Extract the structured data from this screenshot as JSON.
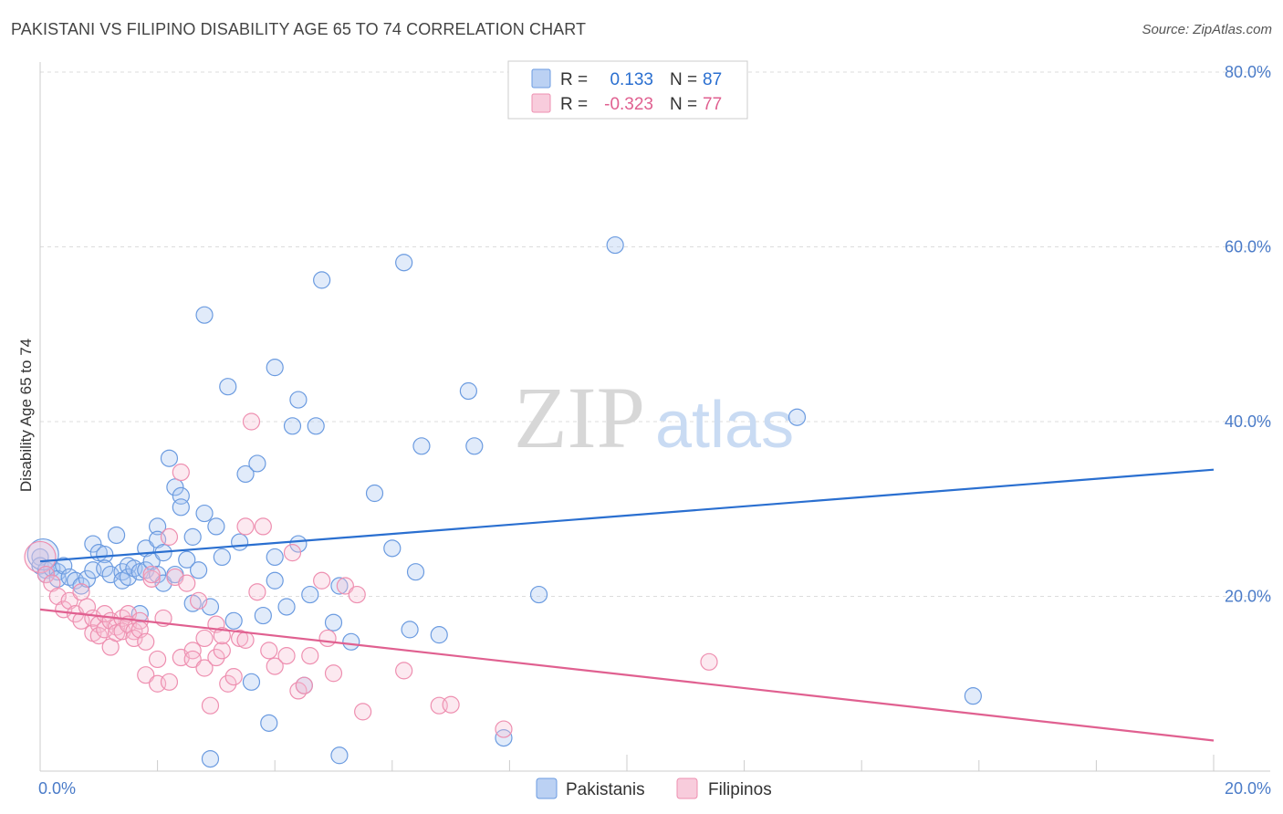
{
  "header": {
    "title": "PAKISTANI VS FILIPINO DISABILITY AGE 65 TO 74 CORRELATION CHART",
    "source": "Source: ZipAtlas.com"
  },
  "chart_data": {
    "type": "scatter",
    "title": "PAKISTANI VS FILIPINO DISABILITY AGE 65 TO 74 CORRELATION CHART",
    "xlabel": "",
    "ylabel": "Disability Age 65 to 74",
    "xlim": [
      0,
      20
    ],
    "ylim": [
      0,
      80
    ],
    "x_tick_labels": [
      "0.0%",
      "20.0%"
    ],
    "y_ticks": [
      20,
      40,
      60,
      80
    ],
    "y_tick_labels": [
      "20.0%",
      "40.0%",
      "60.0%",
      "80.0%"
    ],
    "grid": true,
    "watermark": {
      "zip": "ZIP",
      "atlas": "atlas"
    },
    "legend_stats": [
      {
        "r_label": "R =",
        "r_value": "0.133",
        "n_label": "N =",
        "n_value": "87",
        "color": "#6b9be0"
      },
      {
        "r_label": "R =",
        "r_value": "-0.323",
        "n_label": "N =",
        "n_value": "77",
        "color": "#ee8fb0"
      }
    ],
    "series": [
      {
        "name": "Pakistanis",
        "color": "#6b9be0",
        "fill": "#aac6f0",
        "trend_color": "#2a6fd0",
        "trend": [
          [
            0,
            24.0
          ],
          [
            20,
            34.5
          ]
        ],
        "points": [
          [
            0.0,
            24.5
          ],
          [
            0.0,
            23.5
          ],
          [
            0.1,
            23.0
          ],
          [
            0.1,
            22.5
          ],
          [
            0.2,
            23.2
          ],
          [
            0.3,
            22.8
          ],
          [
            0.3,
            22.0
          ],
          [
            0.4,
            23.5
          ],
          [
            0.5,
            22.2
          ],
          [
            0.6,
            21.8
          ],
          [
            0.7,
            21.2
          ],
          [
            0.8,
            22.0
          ],
          [
            0.9,
            23.0
          ],
          [
            0.9,
            26.0
          ],
          [
            1.0,
            25.0
          ],
          [
            1.1,
            24.8
          ],
          [
            1.1,
            23.2
          ],
          [
            1.2,
            22.5
          ],
          [
            1.3,
            27.0
          ],
          [
            1.4,
            22.8
          ],
          [
            1.4,
            21.8
          ],
          [
            1.5,
            23.5
          ],
          [
            1.5,
            22.2
          ],
          [
            1.6,
            23.2
          ],
          [
            1.7,
            22.8
          ],
          [
            1.7,
            18.0
          ],
          [
            1.8,
            23.0
          ],
          [
            1.8,
            25.5
          ],
          [
            1.9,
            24.0
          ],
          [
            2.0,
            22.5
          ],
          [
            2.0,
            28.0
          ],
          [
            2.0,
            26.5
          ],
          [
            2.1,
            21.5
          ],
          [
            2.1,
            25.0
          ],
          [
            2.2,
            35.8
          ],
          [
            2.3,
            32.5
          ],
          [
            2.3,
            22.5
          ],
          [
            2.4,
            31.5
          ],
          [
            2.4,
            30.2
          ],
          [
            2.5,
            24.2
          ],
          [
            2.6,
            26.8
          ],
          [
            2.6,
            19.2
          ],
          [
            2.7,
            23.0
          ],
          [
            2.8,
            29.5
          ],
          [
            2.8,
            52.2
          ],
          [
            2.9,
            18.8
          ],
          [
            3.0,
            28.0
          ],
          [
            3.1,
            24.5
          ],
          [
            3.2,
            44.0
          ],
          [
            3.3,
            17.2
          ],
          [
            3.4,
            26.2
          ],
          [
            3.5,
            34.0
          ],
          [
            3.6,
            10.2
          ],
          [
            3.7,
            35.2
          ],
          [
            3.8,
            17.8
          ],
          [
            3.9,
            5.5
          ],
          [
            4.0,
            21.8
          ],
          [
            4.0,
            24.5
          ],
          [
            4.0,
            46.2
          ],
          [
            4.2,
            18.8
          ],
          [
            4.3,
            39.5
          ],
          [
            4.4,
            42.5
          ],
          [
            4.4,
            26.0
          ],
          [
            4.5,
            9.8
          ],
          [
            4.6,
            20.2
          ],
          [
            4.7,
            39.5
          ],
          [
            4.8,
            56.2
          ],
          [
            5.0,
            17.0
          ],
          [
            5.1,
            21.2
          ],
          [
            5.3,
            14.8
          ],
          [
            5.7,
            31.8
          ],
          [
            6.0,
            25.5
          ],
          [
            6.2,
            58.2
          ],
          [
            6.3,
            16.2
          ],
          [
            6.4,
            22.8
          ],
          [
            6.5,
            37.2
          ],
          [
            6.8,
            15.6
          ],
          [
            7.3,
            43.5
          ],
          [
            7.4,
            37.2
          ],
          [
            7.9,
            3.8
          ],
          [
            8.5,
            20.2
          ],
          [
            9.8,
            60.2
          ],
          [
            12.9,
            40.5
          ],
          [
            15.9,
            8.6
          ],
          [
            2.9,
            1.4
          ],
          [
            5.1,
            1.8
          ],
          [
            0.05,
            24.8
          ]
        ]
      },
      {
        "name": "Filipinos",
        "color": "#ee8fb0",
        "fill": "#f6bfd3",
        "trend_color": "#e06090",
        "trend": [
          [
            0,
            18.5
          ],
          [
            20,
            3.5
          ]
        ],
        "points": [
          [
            0.0,
            24.5
          ],
          [
            0.1,
            22.5
          ],
          [
            0.2,
            21.5
          ],
          [
            0.3,
            20.0
          ],
          [
            0.4,
            18.5
          ],
          [
            0.5,
            19.5
          ],
          [
            0.6,
            18.0
          ],
          [
            0.7,
            20.5
          ],
          [
            0.7,
            17.2
          ],
          [
            0.8,
            18.8
          ],
          [
            0.9,
            17.5
          ],
          [
            0.9,
            15.8
          ],
          [
            1.0,
            16.8
          ],
          [
            1.0,
            15.5
          ],
          [
            1.1,
            18.0
          ],
          [
            1.1,
            16.2
          ],
          [
            1.2,
            17.2
          ],
          [
            1.2,
            14.2
          ],
          [
            1.3,
            16.5
          ],
          [
            1.3,
            15.8
          ],
          [
            1.4,
            17.5
          ],
          [
            1.4,
            16.0
          ],
          [
            1.5,
            18.0
          ],
          [
            1.5,
            16.8
          ],
          [
            1.6,
            16.0
          ],
          [
            1.6,
            15.2
          ],
          [
            1.7,
            17.2
          ],
          [
            1.7,
            16.2
          ],
          [
            1.8,
            11.0
          ],
          [
            1.8,
            14.8
          ],
          [
            1.9,
            22.0
          ],
          [
            1.9,
            22.5
          ],
          [
            2.0,
            12.8
          ],
          [
            2.0,
            10.0
          ],
          [
            2.1,
            17.5
          ],
          [
            2.2,
            26.8
          ],
          [
            2.2,
            10.2
          ],
          [
            2.3,
            22.2
          ],
          [
            2.4,
            34.2
          ],
          [
            2.4,
            13.0
          ],
          [
            2.5,
            21.5
          ],
          [
            2.6,
            13.8
          ],
          [
            2.6,
            12.8
          ],
          [
            2.7,
            19.5
          ],
          [
            2.8,
            15.2
          ],
          [
            2.8,
            11.8
          ],
          [
            2.9,
            7.5
          ],
          [
            3.0,
            13.0
          ],
          [
            3.0,
            16.8
          ],
          [
            3.1,
            13.8
          ],
          [
            3.1,
            15.5
          ],
          [
            3.2,
            10.0
          ],
          [
            3.3,
            10.8
          ],
          [
            3.4,
            15.2
          ],
          [
            3.5,
            28.0
          ],
          [
            3.5,
            15.0
          ],
          [
            3.6,
            40.0
          ],
          [
            3.7,
            20.5
          ],
          [
            3.8,
            28.0
          ],
          [
            3.9,
            13.8
          ],
          [
            4.0,
            12.0
          ],
          [
            4.2,
            13.2
          ],
          [
            4.3,
            25.0
          ],
          [
            4.4,
            9.2
          ],
          [
            4.5,
            9.8
          ],
          [
            4.6,
            13.2
          ],
          [
            4.8,
            21.8
          ],
          [
            4.9,
            15.2
          ],
          [
            5.0,
            11.2
          ],
          [
            5.2,
            21.2
          ],
          [
            5.4,
            20.2
          ],
          [
            5.5,
            6.8
          ],
          [
            6.2,
            11.5
          ],
          [
            6.8,
            7.5
          ],
          [
            7.0,
            7.6
          ],
          [
            7.9,
            4.8
          ],
          [
            11.4,
            12.5
          ]
        ]
      }
    ]
  },
  "bottom_legend": [
    {
      "label": "Pakistanis"
    },
    {
      "label": "Filipinos"
    }
  ]
}
